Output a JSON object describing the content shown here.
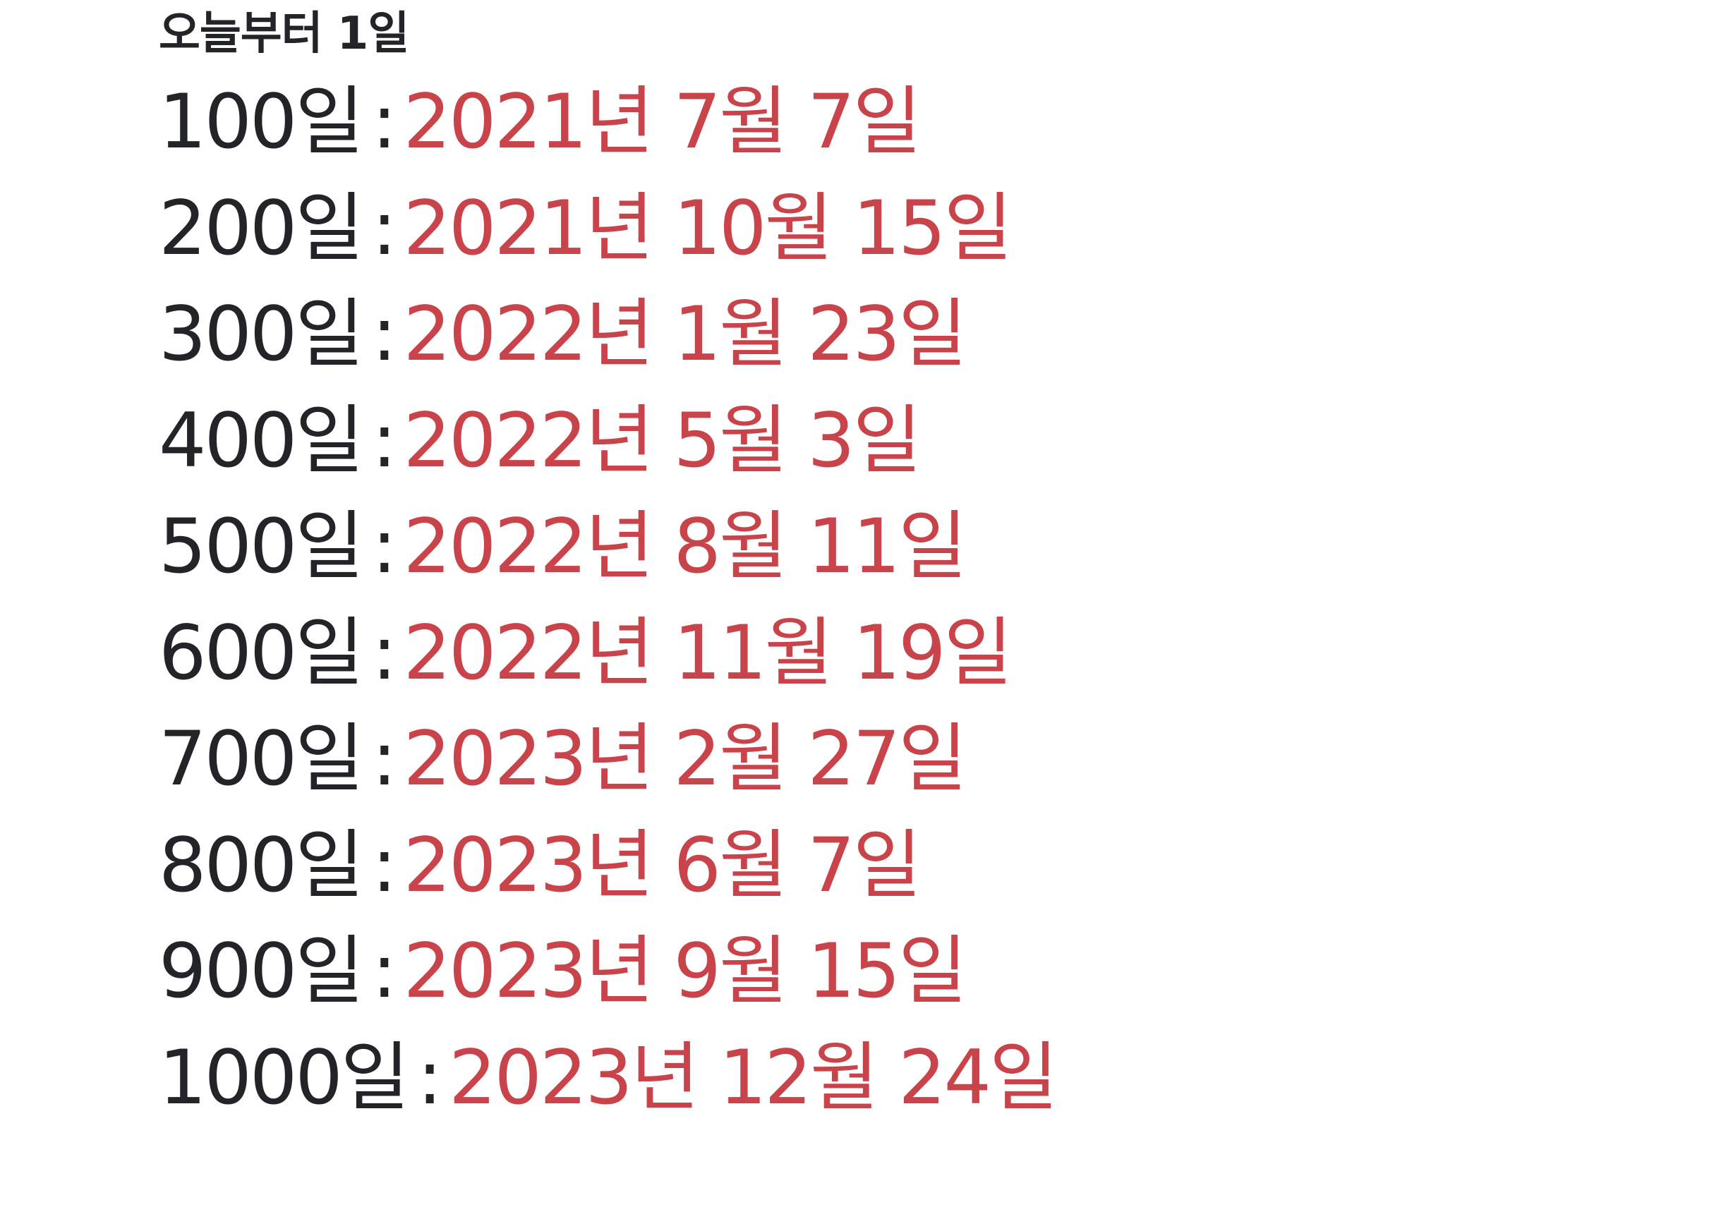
{
  "heading": "오늘부터 1일",
  "separator": ":",
  "colors": {
    "text": "#222428",
    "date": "#c8434a",
    "background": "#ffffff"
  },
  "milestones": [
    {
      "label": "100일",
      "date": "2021년 7월 7일"
    },
    {
      "label": "200일",
      "date": "2021년 10월 15일"
    },
    {
      "label": "300일",
      "date": "2022년 1월 23일"
    },
    {
      "label": "400일",
      "date": "2022년 5월 3일"
    },
    {
      "label": "500일",
      "date": "2022년 8월 11일"
    },
    {
      "label": "600일",
      "date": "2022년 11월 19일"
    },
    {
      "label": "700일",
      "date": "2023년 2월 27일"
    },
    {
      "label": "800일",
      "date": "2023년 6월 7일"
    },
    {
      "label": "900일",
      "date": "2023년 9월 15일"
    },
    {
      "label": "1000일",
      "date": "2023년 12월 24일"
    }
  ]
}
